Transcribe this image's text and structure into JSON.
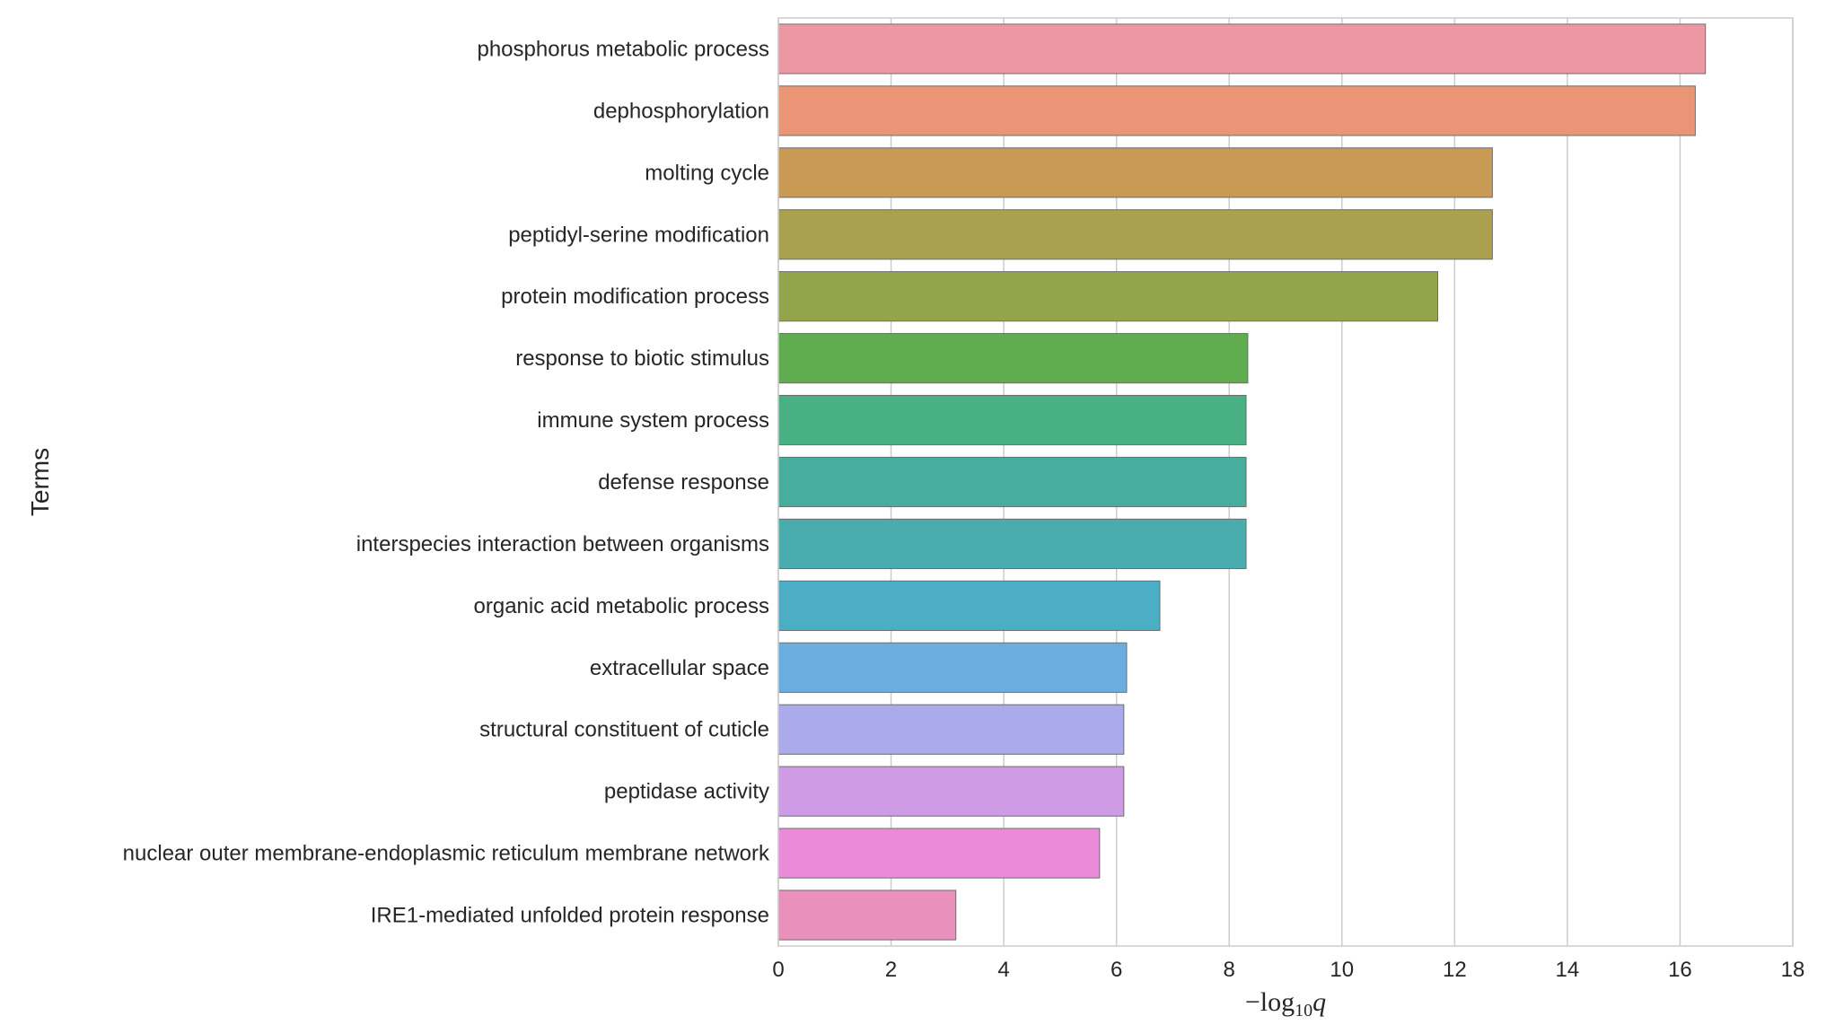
{
  "chart_data": {
    "type": "bar",
    "orientation": "horizontal",
    "categories": [
      "phosphorus metabolic process",
      "dephosphorylation",
      "molting cycle",
      "peptidyl-serine modification",
      "protein modification process",
      "response to biotic stimulus",
      "immune system process",
      "defense response",
      "interspecies interaction between organisms",
      "organic acid metabolic process",
      "extracellular space",
      "structural constituent of cuticle",
      "peptidase activity",
      "nuclear outer membrane-endoplasmic reticulum membrane network",
      "IRE1-mediated unfolded protein response"
    ],
    "values": [
      16.45,
      16.27,
      12.67,
      12.67,
      11.7,
      8.33,
      8.3,
      8.3,
      8.3,
      6.77,
      6.18,
      6.13,
      6.13,
      5.7,
      3.15
    ],
    "colors": [
      "#ee97a4",
      "#e99576",
      "#c99a54",
      "#aba04e",
      "#93a54b",
      "#5fad4e",
      "#48b083",
      "#47ad9c",
      "#49acaf",
      "#4baec4",
      "#6aaee0",
      "#abaaeb",
      "#cf9be5",
      "#ea8ad8",
      "#e991bb"
    ],
    "title": "",
    "xlabel": {
      "prefix": "−log",
      "subscript": "10",
      "variable": "q"
    },
    "ylabel": "Terms",
    "xlim": [
      0,
      18
    ],
    "xticks": [
      0,
      2,
      4,
      6,
      8,
      10,
      12,
      14,
      16,
      18
    ],
    "grid": "vertical"
  }
}
